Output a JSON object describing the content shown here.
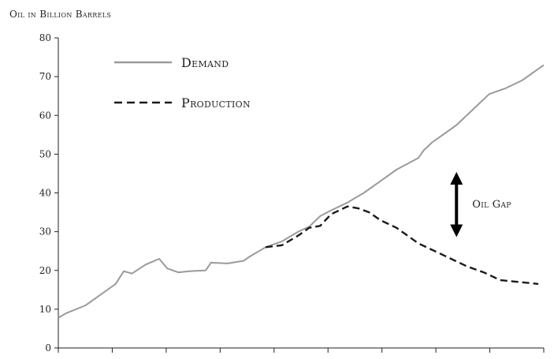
{
  "chart_data": {
    "type": "line",
    "title": "Oil in Billion Barrels",
    "ylabel": "Oil in Billion Barrels",
    "xlabel": "",
    "ylim": [
      0,
      80
    ],
    "yticks": [
      0,
      10,
      20,
      30,
      40,
      50,
      60,
      70,
      80
    ],
    "x_tick_count": 10,
    "xlim": [
      0,
      89
    ],
    "grid": false,
    "legend_position": "top-left",
    "series": [
      {
        "name": "Demand",
        "style": "solid",
        "color": "#9a9a9a",
        "x": [
          0,
          1.5,
          5,
          8,
          10.5,
          12,
          13.5,
          16,
          18.5,
          20,
          22,
          24,
          27,
          28,
          31,
          34,
          35,
          38,
          41,
          44,
          46,
          48,
          50,
          53,
          56,
          59,
          62,
          66,
          67,
          68.5,
          70,
          73,
          76,
          79,
          82,
          85,
          88,
          89
        ],
        "values": [
          7.8,
          9,
          11,
          14,
          16.5,
          19.8,
          19.2,
          21.5,
          23,
          20.5,
          19.5,
          19.8,
          20,
          22,
          21.8,
          22.5,
          23.5,
          26,
          27.5,
          30,
          31.3,
          34,
          35.5,
          37.5,
          40,
          43,
          46,
          49,
          51,
          53,
          54.5,
          57.5,
          61.5,
          65.5,
          67,
          69,
          72,
          73
        ]
      },
      {
        "name": "Production",
        "style": "dashed",
        "color": "#1a1a1a",
        "x": [
          38,
          41,
          44,
          46,
          48,
          50,
          53,
          55,
          57,
          59,
          62,
          64,
          66,
          69,
          72,
          75,
          78,
          81,
          88
        ],
        "values": [
          26,
          26.5,
          29,
          31,
          31.5,
          34.5,
          36.5,
          36,
          35,
          33,
          31,
          29,
          27,
          25,
          23,
          21,
          19.5,
          17.5,
          16.5
        ]
      }
    ],
    "annotations": [
      {
        "text": "Oil Gap",
        "type": "double-arrow",
        "x": 73,
        "y_from": 29,
        "y_to": 45
      }
    ]
  }
}
